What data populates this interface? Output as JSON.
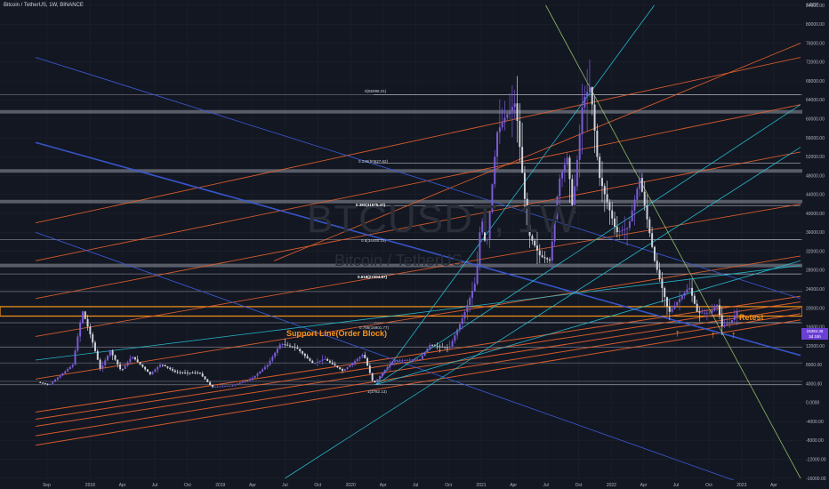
{
  "header": {
    "title": "Bitcoin / TetherUS, 1W, BINANCE"
  },
  "watermark": {
    "ticker": "BTCUSDT, 1W",
    "description": "Bitcoin / TetherUS"
  },
  "axis": {
    "unit": "USDT"
  },
  "last_price": {
    "value": "19394.38",
    "countdown": "3d 15h"
  },
  "annotations": {
    "support_line": "Support Line(Order Block)",
    "retest": "Retest"
  },
  "fib_levels": [
    {
      "label": "0(65098.21)",
      "value": 65098.21
    },
    {
      "label": "0.236(50627.62)",
      "value": 50627.62
    },
    {
      "label": "0.382(41675.47)",
      "value": 41675.47
    },
    {
      "label": "0.5(34440.19)",
      "value": 34440.19
    },
    {
      "label": "0.618(27204.87)",
      "value": 27204.87
    },
    {
      "label": "0.786(16901.77)",
      "value": 16901.77
    },
    {
      "label": "1(3782.13)",
      "value": 3782.13
    }
  ],
  "colors": {
    "background": "#131722",
    "up_candle": "#7b5cd6",
    "down_candle": "#d1d4dc",
    "orange_lines": "#e8622c",
    "blue_lines": "#3b5bdb",
    "cyan_lines": "#26c6da",
    "green_line": "#9ccc65",
    "support_band": "#f7931a"
  },
  "chart_data": {
    "type": "candlestick",
    "title": "Bitcoin / TetherUS, 1W, BINANCE",
    "y_unit": "USDT",
    "ylim": [
      -16000,
      84000
    ],
    "y_ticks": [
      84000,
      80000,
      76000,
      72000,
      68000,
      64000,
      60000,
      56000,
      52000,
      48000,
      44000,
      40000,
      36000,
      32000,
      28000,
      24000,
      20000,
      16000,
      12000,
      8000,
      4000,
      0,
      -4000,
      -8000,
      -12000,
      -16000
    ],
    "y_tick_labels": [
      "84000.00",
      "80000.00",
      "76000.00",
      "72000.00",
      "68000.00",
      "64000.00",
      "60000.00",
      "56000.00",
      "52000.00",
      "48000.00",
      "44000.00",
      "40000.00",
      "36000.00",
      "32000.00",
      "28000.00",
      "24000.00",
      "20000.00",
      "16000.00",
      "12000.00",
      "8000.00",
      "4000.00",
      "0.0000",
      "-4000.00",
      "-8000.00",
      "-12000.00",
      "-16000.00"
    ],
    "x_ticks": [
      "Sep",
      "2018",
      "Apr",
      "Jul",
      "Oct",
      "2019",
      "Apr",
      "Jul",
      "Oct",
      "2020",
      "Apr",
      "Jul",
      "Oct",
      "2021",
      "Apr",
      "Jul",
      "Oct",
      "2022",
      "Apr",
      "Jul",
      "Oct",
      "2023",
      "Apr"
    ],
    "x_tick_dates": [
      "2017-09-01",
      "2018-01-01",
      "2018-04-01",
      "2018-07-01",
      "2018-10-01",
      "2019-01-01",
      "2019-04-01",
      "2019-07-01",
      "2019-10-01",
      "2020-01-01",
      "2020-04-01",
      "2020-07-01",
      "2020-10-01",
      "2021-01-01",
      "2021-04-01",
      "2021-07-01",
      "2021-10-01",
      "2022-01-01",
      "2022-04-01",
      "2022-07-01",
      "2022-10-01",
      "2023-01-01",
      "2023-04-01"
    ],
    "x_range": [
      "2017-08-01",
      "2023-06-15"
    ],
    "price_path": [
      [
        "2017-08-14",
        4300
      ],
      [
        "2017-09-15",
        3800
      ],
      [
        "2017-10-20",
        6000
      ],
      [
        "2017-11-20",
        8000
      ],
      [
        "2017-12-17",
        19500
      ],
      [
        "2018-01-10",
        14000
      ],
      [
        "2018-02-06",
        7000
      ],
      [
        "2018-03-05",
        11000
      ],
      [
        "2018-04-05",
        6700
      ],
      [
        "2018-05-05",
        9800
      ],
      [
        "2018-06-25",
        6000
      ],
      [
        "2018-07-25",
        8200
      ],
      [
        "2018-09-05",
        6400
      ],
      [
        "2018-11-10",
        6300
      ],
      [
        "2018-12-15",
        3300
      ],
      [
        "2019-02-10",
        3600
      ],
      [
        "2019-04-05",
        5000
      ],
      [
        "2019-05-20",
        8000
      ],
      [
        "2019-06-26",
        12500
      ],
      [
        "2019-08-10",
        11500
      ],
      [
        "2019-09-25",
        8200
      ],
      [
        "2019-10-26",
        9300
      ],
      [
        "2019-12-17",
        6700
      ],
      [
        "2020-02-13",
        10300
      ],
      [
        "2020-03-12",
        4000
      ],
      [
        "2020-05-05",
        8800
      ],
      [
        "2020-07-20",
        9200
      ],
      [
        "2020-08-17",
        12200
      ],
      [
        "2020-10-10",
        11500
      ],
      [
        "2020-11-20",
        18500
      ],
      [
        "2020-12-25",
        26000
      ],
      [
        "2021-01-08",
        40000
      ],
      [
        "2021-01-22",
        32000
      ],
      [
        "2021-02-21",
        57000
      ],
      [
        "2021-03-13",
        60000
      ],
      [
        "2021-04-14",
        63500
      ],
      [
        "2021-05-19",
        36000
      ],
      [
        "2021-06-22",
        31000
      ],
      [
        "2021-07-20",
        30000
      ],
      [
        "2021-08-14",
        47000
      ],
      [
        "2021-09-07",
        52000
      ],
      [
        "2021-09-21",
        41000
      ],
      [
        "2021-10-20",
        64000
      ],
      [
        "2021-11-10",
        67000
      ],
      [
        "2021-12-04",
        48000
      ],
      [
        "2022-01-22",
        36000
      ],
      [
        "2022-02-24",
        37000
      ],
      [
        "2022-03-28",
        47500
      ],
      [
        "2022-05-09",
        30000
      ],
      [
        "2022-06-18",
        19000
      ],
      [
        "2022-08-14",
        24500
      ],
      [
        "2022-09-06",
        19000
      ],
      [
        "2022-10-10",
        19000
      ],
      [
        "2022-11-05",
        21000
      ],
      [
        "2022-11-09",
        16000
      ],
      [
        "2022-11-25",
        16500
      ],
      [
        "2022-12-10",
        17200
      ],
      [
        "2022-12-26",
        19394
      ]
    ],
    "horizontal_levels": [
      65098.21,
      61500,
      49000,
      42500,
      34440.19,
      29000,
      27204.87,
      23500,
      18300,
      16901.77,
      11700,
      8400,
      4500,
      3782.13
    ]
  }
}
